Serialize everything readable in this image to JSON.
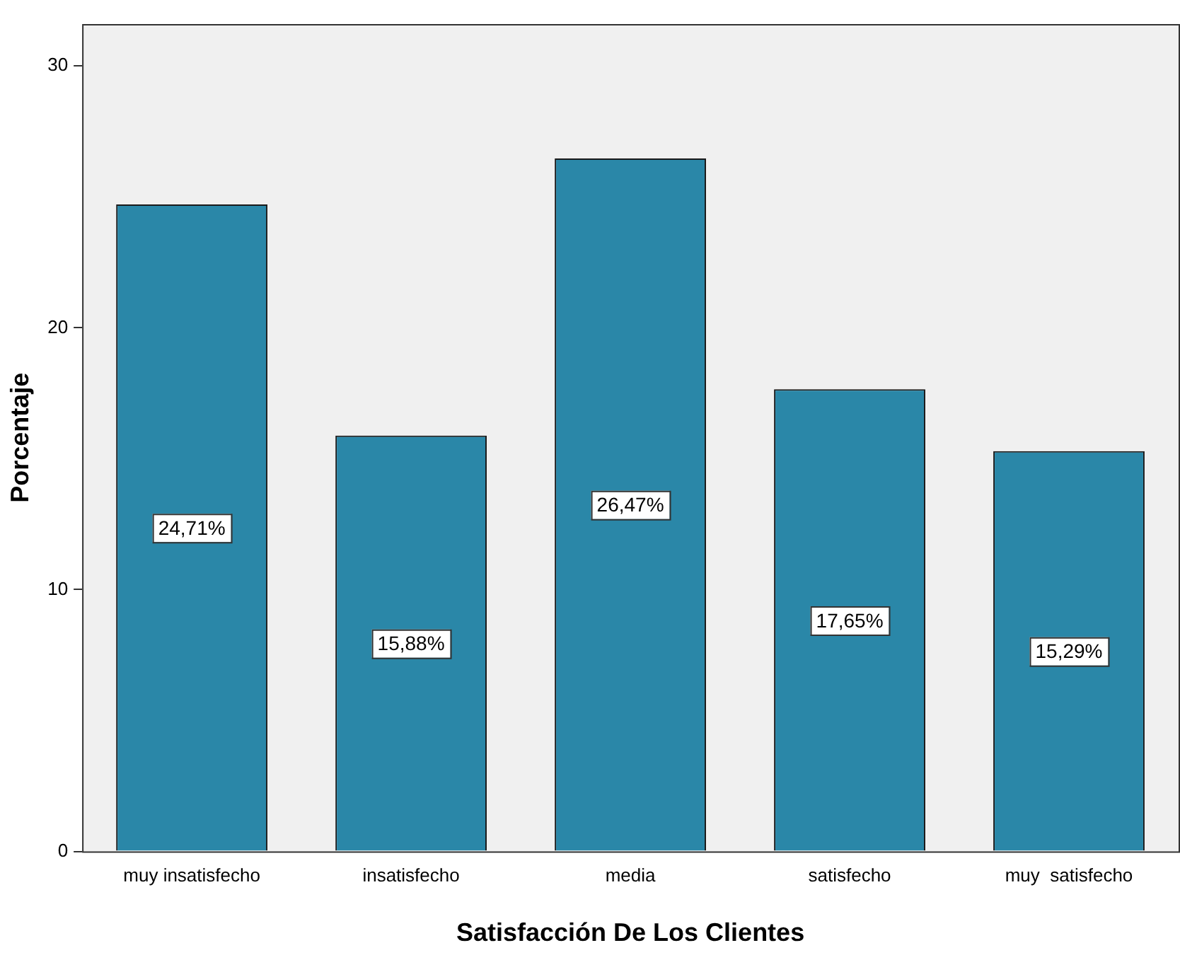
{
  "chart_data": {
    "type": "bar",
    "xlabel": "Satisfacción De Los Clientes",
    "ylabel": "Porcentaje",
    "categories": [
      "muy insatisfecho",
      "insatisfecho",
      "media",
      "satisfecho",
      "muy  satisfecho"
    ],
    "values": [
      24.71,
      15.88,
      26.47,
      17.65,
      15.29
    ],
    "value_labels": [
      "24,71%",
      "15,88%",
      "26,47%",
      "17,65%",
      "15,29%"
    ],
    "color": "#2a87a8",
    "ylim": [
      0,
      31.6
    ],
    "yticks": [
      0,
      10,
      20,
      30
    ],
    "grid": false,
    "legend": false
  }
}
